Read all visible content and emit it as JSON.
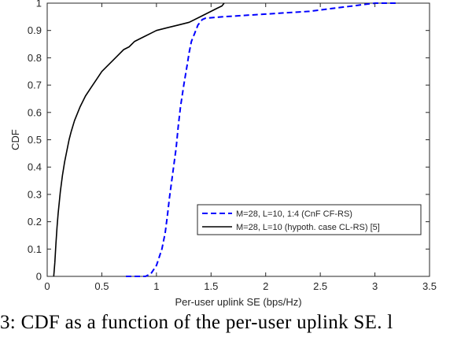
{
  "chart_data": {
    "type": "line",
    "xlabel": "Per-user uplink SE (bps/Hz)",
    "ylabel": "CDF",
    "xlim": [
      0,
      3.5
    ],
    "ylim": [
      0,
      1
    ],
    "xticks": [
      "0",
      "0.5",
      "1",
      "1.5",
      "2",
      "2.5",
      "3",
      "3.5"
    ],
    "yticks": [
      "0",
      "0.1",
      "0.2",
      "0.3",
      "0.4",
      "0.5",
      "0.6",
      "0.7",
      "0.8",
      "0.9",
      "1"
    ],
    "grid": false,
    "legend_position": "lower-right",
    "series": [
      {
        "name": "M=28, L=10, 1:4 (CnF CF-RS)",
        "color": "#0000ff",
        "style": "dashed",
        "x": [
          0.72,
          0.9,
          0.95,
          1.0,
          1.05,
          1.08,
          1.1,
          1.12,
          1.15,
          1.18,
          1.2,
          1.22,
          1.25,
          1.28,
          1.3,
          1.32,
          1.35,
          1.38,
          1.42,
          1.45,
          1.6,
          1.8,
          2.0,
          2.2,
          2.4,
          2.6,
          2.8,
          2.9,
          3.0,
          3.1,
          3.22
        ],
        "y": [
          0,
          0.0,
          0.01,
          0.04,
          0.1,
          0.16,
          0.22,
          0.29,
          0.38,
          0.47,
          0.55,
          0.62,
          0.7,
          0.77,
          0.82,
          0.86,
          0.89,
          0.92,
          0.94,
          0.945,
          0.95,
          0.955,
          0.96,
          0.965,
          0.97,
          0.98,
          0.99,
          0.995,
          1.0,
          1.0,
          1.0
        ]
      },
      {
        "name": "M=28, L=10 (hypoth. case CL-RS) [5]",
        "color": "#000000",
        "style": "solid",
        "x": [
          0.06,
          0.07,
          0.08,
          0.09,
          0.1,
          0.11,
          0.12,
          0.14,
          0.16,
          0.18,
          0.2,
          0.22,
          0.25,
          0.28,
          0.3,
          0.35,
          0.4,
          0.45,
          0.5,
          0.55,
          0.6,
          0.65,
          0.7,
          0.75,
          0.8,
          0.85,
          0.9,
          0.95,
          1.0,
          1.1,
          1.2,
          1.3,
          1.4,
          1.5,
          1.55,
          1.6,
          1.62
        ],
        "y": [
          0,
          0.05,
          0.12,
          0.18,
          0.23,
          0.27,
          0.31,
          0.37,
          0.42,
          0.46,
          0.5,
          0.53,
          0.57,
          0.6,
          0.62,
          0.66,
          0.69,
          0.72,
          0.75,
          0.77,
          0.79,
          0.81,
          0.83,
          0.84,
          0.86,
          0.87,
          0.88,
          0.89,
          0.9,
          0.91,
          0.92,
          0.93,
          0.95,
          0.97,
          0.98,
          0.99,
          1.0
        ]
      }
    ]
  },
  "caption": "3: CDF as a function of the per-user uplink SE. l"
}
